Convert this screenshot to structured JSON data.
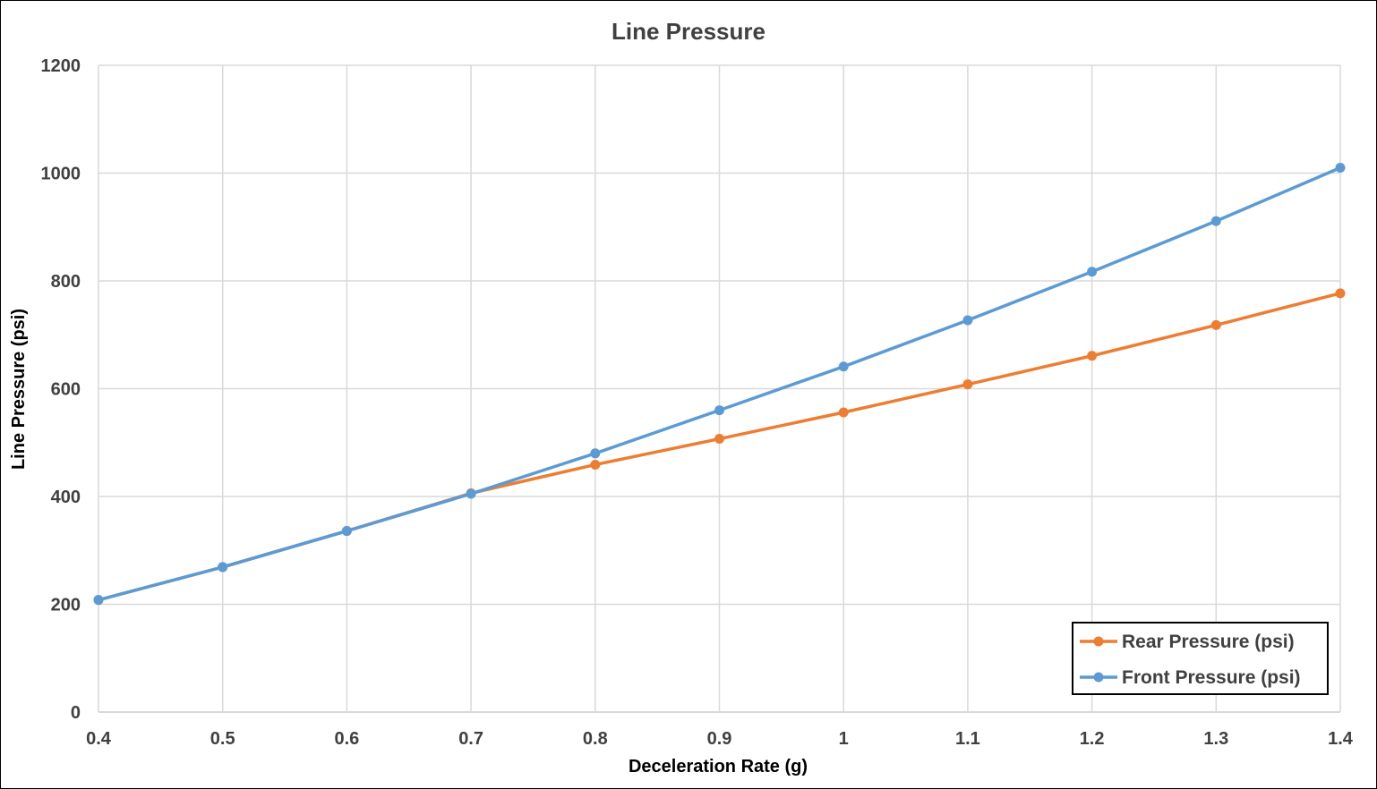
{
  "chart_data": {
    "type": "line",
    "title": "Line Pressure",
    "xlabel": "Deceleration Rate (g)",
    "ylabel": "Line Pressure (psi)",
    "x": [
      0.4,
      0.5,
      0.6,
      0.7,
      0.8,
      0.9,
      1.0,
      1.1,
      1.2,
      1.3,
      1.4
    ],
    "x_tick_labels": [
      "0.4",
      "0.5",
      "0.6",
      "0.7",
      "0.8",
      "0.9",
      "1",
      "1.1",
      "1.2",
      "1.3",
      "1.4"
    ],
    "y_tick_labels": [
      "0",
      "200",
      "400",
      "600",
      "800",
      "1000",
      "1200"
    ],
    "xlim": [
      0.4,
      1.4
    ],
    "ylim": [
      0,
      1200
    ],
    "grid": true,
    "legend_position": "bottom-right",
    "series": [
      {
        "name": "Rear Pressure (psi)",
        "color": "#ED7D31",
        "values": [
          208,
          269,
          336,
          406,
          459,
          507,
          556,
          608,
          661,
          718,
          777
        ]
      },
      {
        "name": "Front Pressure (psi)",
        "color": "#5B9BD5",
        "values": [
          208,
          269,
          336,
          405,
          480,
          560,
          641,
          727,
          817,
          911,
          1010
        ]
      }
    ]
  }
}
